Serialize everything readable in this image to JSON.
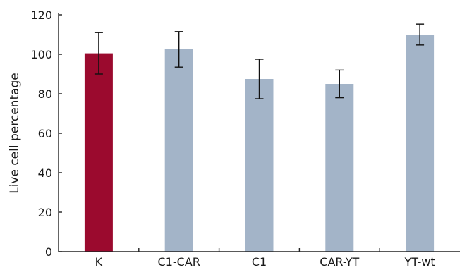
{
  "chart_data": {
    "type": "bar",
    "title": "",
    "xlabel": "",
    "ylabel": "Live cell percentage",
    "ylim": [
      0,
      120
    ],
    "yticks": [
      0,
      20,
      40,
      60,
      80,
      100,
      120
    ],
    "grid": false,
    "categories": [
      "K",
      "C1-CAR",
      "C1",
      "CAR-YT",
      "YT-wt"
    ],
    "values": [
      100.5,
      102.5,
      87.5,
      85,
      110
    ],
    "errors": [
      10.5,
      9,
      10,
      7,
      5.3
    ],
    "colors": [
      "#9b0a2e",
      "#a3b4c8",
      "#a3b4c8",
      "#a3b4c8",
      "#a3b4c8"
    ]
  }
}
